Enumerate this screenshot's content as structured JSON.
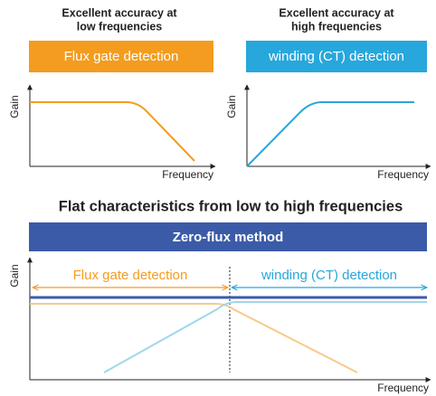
{
  "left_panel": {
    "title_lines": [
      "Excellent accuracy at",
      "low frequencies"
    ],
    "box": "Flux gate detection",
    "y_label": "Gain",
    "x_label": "Frequency"
  },
  "right_panel": {
    "title_lines": [
      "Excellent accuracy at",
      "high frequencies"
    ],
    "box": "winding (CT) detection",
    "y_label": "Gain",
    "x_label": "Frequency"
  },
  "bottom_panel": {
    "heading": "Flat characteristics from low to high frequencies",
    "box": "Zero-flux method",
    "left_range": "Flux gate detection",
    "right_range": "winding (CT) detection",
    "y_label": "Gain",
    "x_label": "Frequency"
  }
}
